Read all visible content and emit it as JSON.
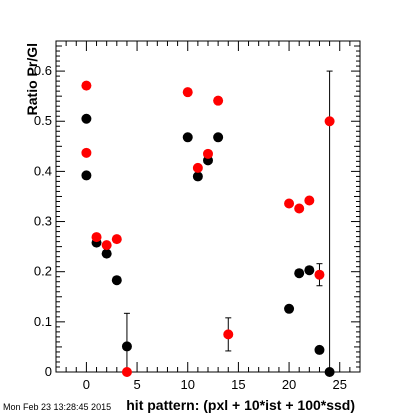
{
  "chart_data": {
    "type": "scatter",
    "title": "",
    "xlabel": "hit pattern: (pxl + 10*ist + 100*ssd)",
    "ylabel": "Ratio Pr/Gl",
    "xlim": [
      -3,
      27
    ],
    "ylim": [
      0,
      0.66
    ],
    "x_major_ticks": [
      0,
      5,
      10,
      15,
      20,
      25
    ],
    "y_major_ticks": [
      0,
      0.1,
      0.2,
      0.3,
      0.4,
      0.5,
      0.6
    ],
    "x_tick_labels": [
      "0",
      "5",
      "10",
      "15",
      "20",
      "25"
    ],
    "y_tick_labels": [
      "0",
      "0.1",
      "0.2",
      "0.3",
      "0.4",
      "0.5",
      "0.6"
    ],
    "grid": false,
    "legend": "none",
    "timestamp": "Mon Feb 23 13:28:45 2015",
    "series": [
      {
        "color": "#000000",
        "points": [
          {
            "x": 0,
            "y": 0.505,
            "err": 0.004
          },
          {
            "x": 0,
            "y": 0.392,
            "err": 0.004
          },
          {
            "x": 1,
            "y": 0.258,
            "err": 0.004
          },
          {
            "x": 2,
            "y": 0.236,
            "err": 0.004
          },
          {
            "x": 3,
            "y": 0.183,
            "err": 0.005
          },
          {
            "x": 4,
            "y": 0.051,
            "err": 0.066
          },
          {
            "x": 10,
            "y": 0.468,
            "err": 0.004
          },
          {
            "x": 11,
            "y": 0.39,
            "err": 0.004
          },
          {
            "x": 12,
            "y": 0.422,
            "err": 0.004
          },
          {
            "x": 13,
            "y": 0.468,
            "err": 0.004
          },
          {
            "x": 20,
            "y": 0.126,
            "err": 0.004
          },
          {
            "x": 21,
            "y": 0.197,
            "err": 0.004
          },
          {
            "x": 22,
            "y": 0.203,
            "err": 0.004
          },
          {
            "x": 23,
            "y": 0.044,
            "err": 0.01
          },
          {
            "x": 24,
            "y": 0.0,
            "err": 0.6
          }
        ]
      },
      {
        "color": "#ff0000",
        "points": [
          {
            "x": 0,
            "y": 0.571,
            "err": 0.004
          },
          {
            "x": 0,
            "y": 0.437,
            "err": 0.004
          },
          {
            "x": 1,
            "y": 0.269,
            "err": 0.004
          },
          {
            "x": 2,
            "y": 0.253,
            "err": 0.004
          },
          {
            "x": 3,
            "y": 0.265,
            "err": 0.004
          },
          {
            "x": 4,
            "y": 0.0,
            "err": 0.004
          },
          {
            "x": 10,
            "y": 0.558,
            "err": 0.004
          },
          {
            "x": 11,
            "y": 0.407,
            "err": 0.004
          },
          {
            "x": 12,
            "y": 0.435,
            "err": 0.004
          },
          {
            "x": 13,
            "y": 0.541,
            "err": 0.004
          },
          {
            "x": 14,
            "y": 0.075,
            "err": 0.033
          },
          {
            "x": 20,
            "y": 0.336,
            "err": 0.004
          },
          {
            "x": 21,
            "y": 0.326,
            "err": 0.004
          },
          {
            "x": 22,
            "y": 0.342,
            "err": 0.004
          },
          {
            "x": 23,
            "y": 0.194,
            "err": 0.022
          },
          {
            "x": 24,
            "y": 0.5,
            "err": 0.004
          }
        ]
      }
    ]
  }
}
